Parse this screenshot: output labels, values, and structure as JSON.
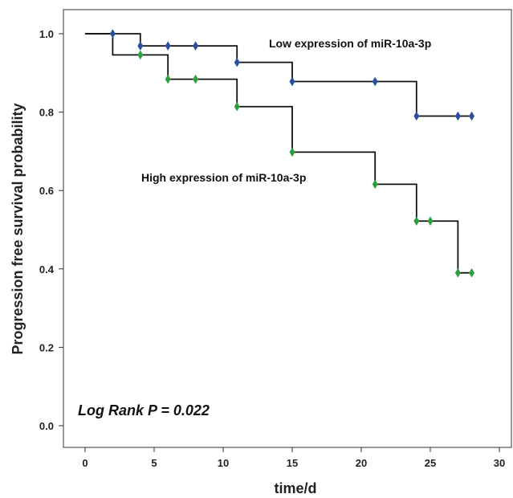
{
  "chart_data": {
    "type": "line",
    "step": true,
    "xlabel": "time/d",
    "ylabel": "Progression free survival probability",
    "xlim": [
      0,
      30
    ],
    "ylim": [
      0,
      1.0
    ],
    "x_ticks": [
      0,
      5,
      10,
      15,
      20,
      25,
      30
    ],
    "y_ticks": [
      0.0,
      0.2,
      0.4,
      0.6,
      0.8,
      1.0
    ],
    "x_tick_labels": [
      "0",
      "5",
      "10",
      "15",
      "20",
      "25",
      "30"
    ],
    "y_tick_labels": [
      "0.0",
      "0.2",
      "0.4",
      "0.6",
      "0.8",
      "1.0"
    ],
    "grid": false,
    "series": [
      {
        "name": "Low expression of miR-10a-3p",
        "color": "#2b4fa0",
        "steps": [
          [
            0,
            1.0
          ],
          [
            4,
            0.969
          ],
          [
            11,
            0.927
          ],
          [
            15,
            0.878
          ],
          [
            24,
            0.79
          ],
          [
            28,
            0.79
          ]
        ],
        "censored": [
          [
            2,
            1.0
          ],
          [
            4,
            0.969
          ],
          [
            6,
            0.969
          ],
          [
            8,
            0.969
          ],
          [
            11,
            0.927
          ],
          [
            15,
            0.878
          ],
          [
            21,
            0.878
          ],
          [
            24,
            0.79
          ],
          [
            27,
            0.79
          ],
          [
            28,
            0.79
          ]
        ]
      },
      {
        "name": "High expression of miR-10a-3p",
        "color": "#2e9e3e",
        "steps": [
          [
            0,
            1.0
          ],
          [
            2,
            0.946
          ],
          [
            6,
            0.884
          ],
          [
            11,
            0.814
          ],
          [
            15,
            0.698
          ],
          [
            21,
            0.616
          ],
          [
            24,
            0.522
          ],
          [
            27,
            0.39
          ],
          [
            28,
            0.39
          ]
        ],
        "censored": [
          [
            4,
            0.946
          ],
          [
            6,
            0.884
          ],
          [
            8,
            0.884
          ],
          [
            11,
            0.814
          ],
          [
            15,
            0.698
          ],
          [
            21,
            0.616
          ],
          [
            24,
            0.522
          ],
          [
            25,
            0.522
          ],
          [
            27,
            0.39
          ],
          [
            28,
            0.39
          ]
        ]
      }
    ],
    "annotations": {
      "low_label": "Low expression of miR-10a-3p",
      "high_label": "High expression of miR-10a-3p",
      "stat": "Log Rank P = 0.022"
    },
    "line_color": "#111111",
    "frame_color": "#333333"
  }
}
